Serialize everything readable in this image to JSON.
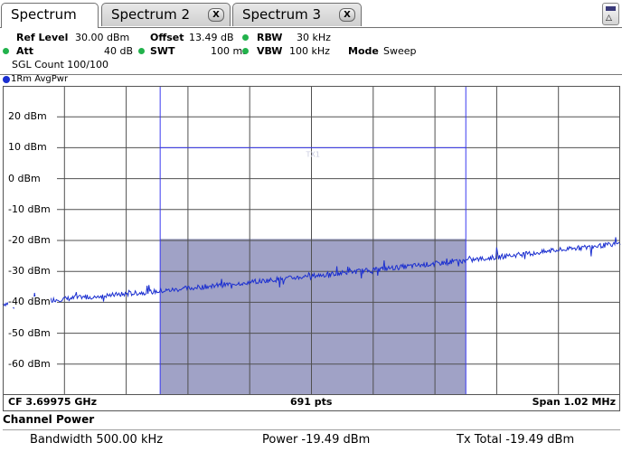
{
  "tabs": [
    {
      "label": "Spectrum",
      "active": true,
      "closable": false
    },
    {
      "label": "Spectrum 2",
      "active": false,
      "closable": true
    },
    {
      "label": "Spectrum 3",
      "active": false,
      "closable": true
    }
  ],
  "tab_close_glyph": "X",
  "corner_icon": "battery-warning-icon",
  "settings": {
    "ref_level_label": "Ref Level",
    "ref_level_value": "30.00 dBm",
    "offset_label": "Offset",
    "offset_value": "13.49 dB",
    "rbw_label": "RBW",
    "rbw_value": "30 kHz",
    "att_label": "Att",
    "att_value": "40 dB",
    "swt_label": "SWT",
    "swt_value": "100 ms",
    "vbw_label": "VBW",
    "vbw_value": "100 kHz",
    "mode_label": "Mode",
    "mode_value": "Sweep",
    "sgl_count": "SGL Count 100/100"
  },
  "trace_label": "1Rm AvgPwr",
  "colors": {
    "trace": "#1b2fd0",
    "channel_fill": "#a0a2c6",
    "channel_lines": "#3a3af0",
    "grid": "#505050",
    "status_dot": "#22b24c"
  },
  "chart_data": {
    "type": "line",
    "ylim": [
      -70,
      30
    ],
    "yticks": [
      20,
      10,
      0,
      -10,
      -20,
      -30,
      -40,
      -50,
      -60
    ],
    "ytick_labels": [
      "20 dBm",
      "10 dBm",
      "0 dBm",
      "-10 dBm",
      "-20 dBm",
      "-30 dBm",
      "-40 dBm",
      "-50 dBm",
      "-60 dBm"
    ],
    "x_divisions": 10,
    "grid": true,
    "series": [
      {
        "x": [
          0,
          0.25,
          0.5,
          0.75,
          1.0
        ],
        "y": [
          -40.5,
          -36.5,
          -31.5,
          -26.5,
          -21.0
        ]
      }
    ],
    "channel": {
      "x_start": 0.255,
      "x_end": 0.75,
      "level": -19.49
    },
    "display_line": {
      "level": 10,
      "label": "TX1"
    }
  },
  "footer": {
    "cf": "CF 3.69975 GHz",
    "pts": "691 pts",
    "span": "Span 1.02 MHz"
  },
  "channel_power": {
    "title": "Channel Power",
    "bandwidth": "Bandwidth  500.00 kHz",
    "power": "Power  -19.49 dBm",
    "tx_total": "Tx Total  -19.49 dBm"
  }
}
